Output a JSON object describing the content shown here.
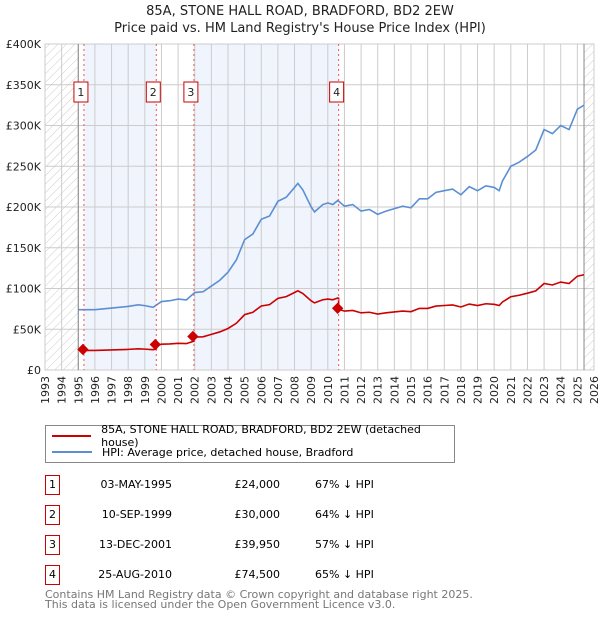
{
  "chart_data": {
    "type": "line",
    "title": "85A, STONE HALL ROAD, BRADFORD, BD2 2EW",
    "subtitle": "Price paid vs. HM Land Registry's House Price Index (HPI)",
    "xlim": [
      1993,
      2026
    ],
    "ylim": [
      0,
      400000
    ],
    "y_ticks": [
      {
        "v": 0,
        "label": "£0"
      },
      {
        "v": 50000,
        "label": "£50K"
      },
      {
        "v": 100000,
        "label": "£100K"
      },
      {
        "v": 150000,
        "label": "£150K"
      },
      {
        "v": 200000,
        "label": "£200K"
      },
      {
        "v": 250000,
        "label": "£250K"
      },
      {
        "v": 300000,
        "label": "£300K"
      },
      {
        "v": 350000,
        "label": "£350K"
      },
      {
        "v": 400000,
        "label": "£400K"
      }
    ],
    "x_ticks": [
      "1993",
      "1994",
      "1995",
      "1996",
      "1997",
      "1998",
      "1999",
      "2000",
      "2001",
      "2002",
      "2003",
      "2004",
      "2005",
      "2006",
      "2007",
      "2008",
      "2009",
      "2010",
      "2011",
      "2012",
      "2013",
      "2014",
      "2015",
      "2016",
      "2017",
      "2018",
      "2019",
      "2020",
      "2021",
      "2022",
      "2023",
      "2024",
      "2025",
      "2026"
    ],
    "grid": true,
    "data_range": [
      1995.0,
      2025.4
    ],
    "series": [
      {
        "name": "85A, STONE HALL ROAD, BRADFORD, BD2 2EW (detached house)",
        "color": "#cc0000",
        "derived": "hpi-scaled-from-sales"
      },
      {
        "name": "HPI: Average price, detached house, Bradford",
        "color": "#5b8fd4",
        "x": [
          1995.0,
          1996,
          1997,
          1998,
          1998.6,
          1999,
          1999.5,
          2000,
          2000.5,
          2001,
          2001.5,
          2002,
          2002.5,
          2003,
          2003.5,
          2004,
          2004.5,
          2005,
          2005.5,
          2006,
          2006.5,
          2007,
          2007.5,
          2008,
          2008.2,
          2008.5,
          2009,
          2009.2,
          2009.7,
          2010,
          2010.3,
          2010.6,
          2011,
          2011.5,
          2012,
          2012.5,
          2013,
          2013.5,
          2014,
          2014.5,
          2015,
          2015.5,
          2016,
          2016.5,
          2017,
          2017.5,
          2018,
          2018.5,
          2019,
          2019.5,
          2020,
          2020.3,
          2020.5,
          2021,
          2021.5,
          2022,
          2022.5,
          2023,
          2023.5,
          2024,
          2024.5,
          2025,
          2025.4
        ],
        "y": [
          74000,
          74000,
          76000,
          78000,
          80000,
          79000,
          77000,
          84000,
          85000,
          87000,
          86000,
          95000,
          96000,
          103000,
          110000,
          120000,
          135000,
          160000,
          167000,
          185000,
          189000,
          207000,
          212000,
          224000,
          229000,
          221000,
          200000,
          194000,
          203000,
          205000,
          203000,
          208000,
          201000,
          203000,
          195000,
          197000,
          191000,
          195000,
          198000,
          201000,
          199000,
          210000,
          210000,
          218000,
          220000,
          222000,
          215000,
          225000,
          220000,
          226000,
          224000,
          220000,
          232000,
          250000,
          255000,
          262000,
          270000,
          295000,
          290000,
          300000,
          295000,
          320000,
          325000
        ]
      }
    ],
    "sales": [
      {
        "n": "1",
        "x": 1995.34,
        "date": "03-MAY-1995",
        "price": 24000,
        "price_label": "£24,000",
        "hpi": "67% ↓ HPI"
      },
      {
        "n": "2",
        "x": 1999.69,
        "date": "10-SEP-1999",
        "price": 30000,
        "price_label": "£30,000",
        "hpi": "64% ↓ HPI"
      },
      {
        "n": "3",
        "x": 2001.95,
        "date": "13-DEC-2001",
        "price": 39950,
        "price_label": "£39,950",
        "hpi": "57% ↓ HPI"
      },
      {
        "n": "4",
        "x": 2010.65,
        "date": "25-AUG-2010",
        "price": 74500,
        "price_label": "£74,500",
        "hpi": "65% ↓ HPI"
      }
    ],
    "colors": {
      "shade": "#f0f4fd",
      "grid": "#cccccc",
      "marker_box": "#cc0000"
    }
  },
  "legend": {
    "red": "85A, STONE HALL ROAD, BRADFORD, BD2 2EW (detached house)",
    "blue": "HPI: Average price, detached house, Bradford"
  },
  "footer": {
    "line1": "Contains HM Land Registry data © Crown copyright and database right 2025.",
    "line2": "This data is licensed under the Open Government Licence v3.0."
  }
}
